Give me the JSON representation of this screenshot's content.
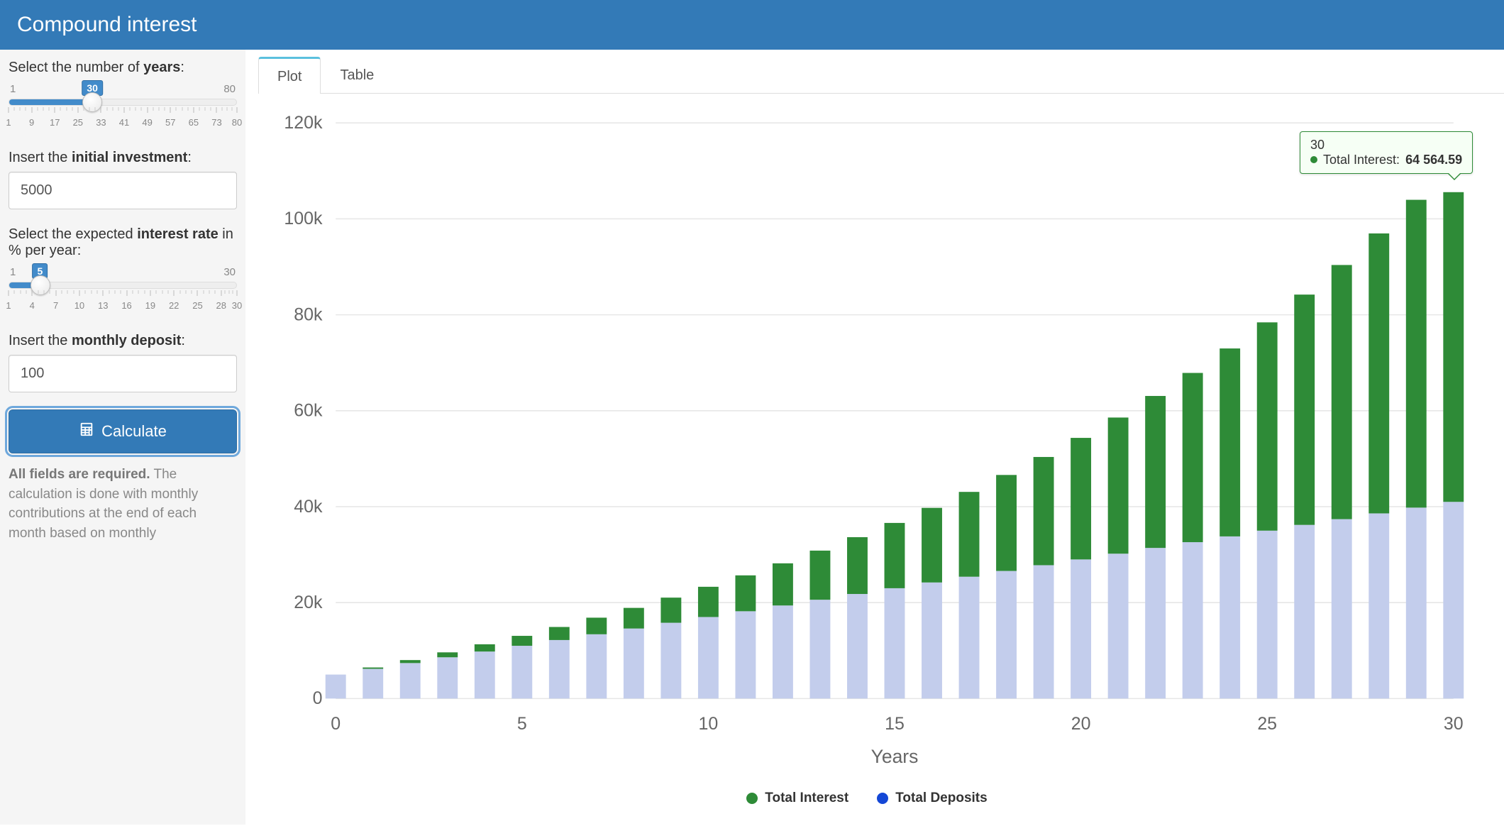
{
  "header": {
    "title": "Compound interest"
  },
  "sidebar": {
    "years": {
      "label_pre": "Select the number of ",
      "label_bold": "years",
      "label_post": ":",
      "min": 1,
      "max": 80,
      "value": 30,
      "major_ticks": [
        1,
        9,
        17,
        25,
        33,
        41,
        49,
        57,
        65,
        73,
        80
      ]
    },
    "initial": {
      "label_pre": "Insert the ",
      "label_bold": "initial investment",
      "label_post": ":",
      "value": "5000"
    },
    "rate": {
      "label_pre": "Select the expected ",
      "label_bold": "interest rate",
      "label_post": " in % per year:",
      "min": 1,
      "max": 30,
      "value": 5,
      "major_ticks": [
        1,
        4,
        7,
        10,
        13,
        16,
        19,
        22,
        25,
        28,
        30
      ]
    },
    "monthly": {
      "label_pre": "Insert the ",
      "label_bold": "monthly deposit",
      "label_post": ":",
      "value": "100"
    },
    "calculate_label": "Calculate",
    "help_bold": "All fields are required.",
    "help_rest": " The calculation is done with monthly contributions at the end of each month based on monthly"
  },
  "tabs": {
    "plot": "Plot",
    "table": "Table",
    "active": "plot"
  },
  "chart": {
    "type": "stacked-bar",
    "x_label": "Years",
    "x_min": 0,
    "x_max": 30,
    "x_tick_step": 5,
    "y_min": 0,
    "y_max": 120000,
    "y_tick_step": 20000,
    "y_tick_labels": [
      "0",
      "20k",
      "40k",
      "60k",
      "80k",
      "100k",
      "120k"
    ],
    "bar_width_ratio": 0.55,
    "colors": {
      "interest": "#2e8b37",
      "deposits_fill": "#c3cdec",
      "deposits_legend": "#1447d6",
      "grid": "#e6e6e6",
      "axis_text": "#666666",
      "background": "#ffffff"
    },
    "legend": [
      {
        "label": "Total Interest",
        "color_key": "interest"
      },
      {
        "label": "Total Deposits",
        "color_key": "deposits_legend"
      }
    ],
    "series": [
      {
        "year": 0,
        "deposits": 5000,
        "interest": 0
      },
      {
        "year": 1,
        "deposits": 6200,
        "interest": 280
      },
      {
        "year": 2,
        "deposits": 7400,
        "interest": 620
      },
      {
        "year": 3,
        "deposits": 8600,
        "interest": 1030
      },
      {
        "year": 4,
        "deposits": 9800,
        "interest": 1510
      },
      {
        "year": 5,
        "deposits": 11000,
        "interest": 2070
      },
      {
        "year": 6,
        "deposits": 12200,
        "interest": 2720
      },
      {
        "year": 7,
        "deposits": 13400,
        "interest": 3460
      },
      {
        "year": 8,
        "deposits": 14600,
        "interest": 4300
      },
      {
        "year": 9,
        "deposits": 15800,
        "interest": 5240
      },
      {
        "year": 10,
        "deposits": 17000,
        "interest": 6300
      },
      {
        "year": 11,
        "deposits": 18200,
        "interest": 7480
      },
      {
        "year": 12,
        "deposits": 19400,
        "interest": 8790
      },
      {
        "year": 13,
        "deposits": 20600,
        "interest": 10240
      },
      {
        "year": 14,
        "deposits": 21800,
        "interest": 11840
      },
      {
        "year": 15,
        "deposits": 23000,
        "interest": 13610
      },
      {
        "year": 16,
        "deposits": 24200,
        "interest": 15550
      },
      {
        "year": 17,
        "deposits": 25400,
        "interest": 17680
      },
      {
        "year": 18,
        "deposits": 26600,
        "interest": 20010
      },
      {
        "year": 19,
        "deposits": 27800,
        "interest": 22560
      },
      {
        "year": 20,
        "deposits": 29000,
        "interest": 25340
      },
      {
        "year": 21,
        "deposits": 30200,
        "interest": 28380
      },
      {
        "year": 22,
        "deposits": 31400,
        "interest": 31680
      },
      {
        "year": 23,
        "deposits": 32600,
        "interest": 35280
      },
      {
        "year": 24,
        "deposits": 33800,
        "interest": 39180
      },
      {
        "year": 25,
        "deposits": 35000,
        "interest": 43420
      },
      {
        "year": 26,
        "deposits": 36200,
        "interest": 48010
      },
      {
        "year": 27,
        "deposits": 37400,
        "interest": 52980
      },
      {
        "year": 28,
        "deposits": 38600,
        "interest": 58360
      },
      {
        "year": 29,
        "deposits": 39800,
        "interest": 64170
      },
      {
        "year": 30,
        "deposits": 41000,
        "interest": 64564.59
      }
    ],
    "tooltip": {
      "year": "30",
      "series_label": "Total Interest:",
      "value": "64 564.59",
      "dot_color": "#2e8b37",
      "anchor_year": 30
    }
  }
}
